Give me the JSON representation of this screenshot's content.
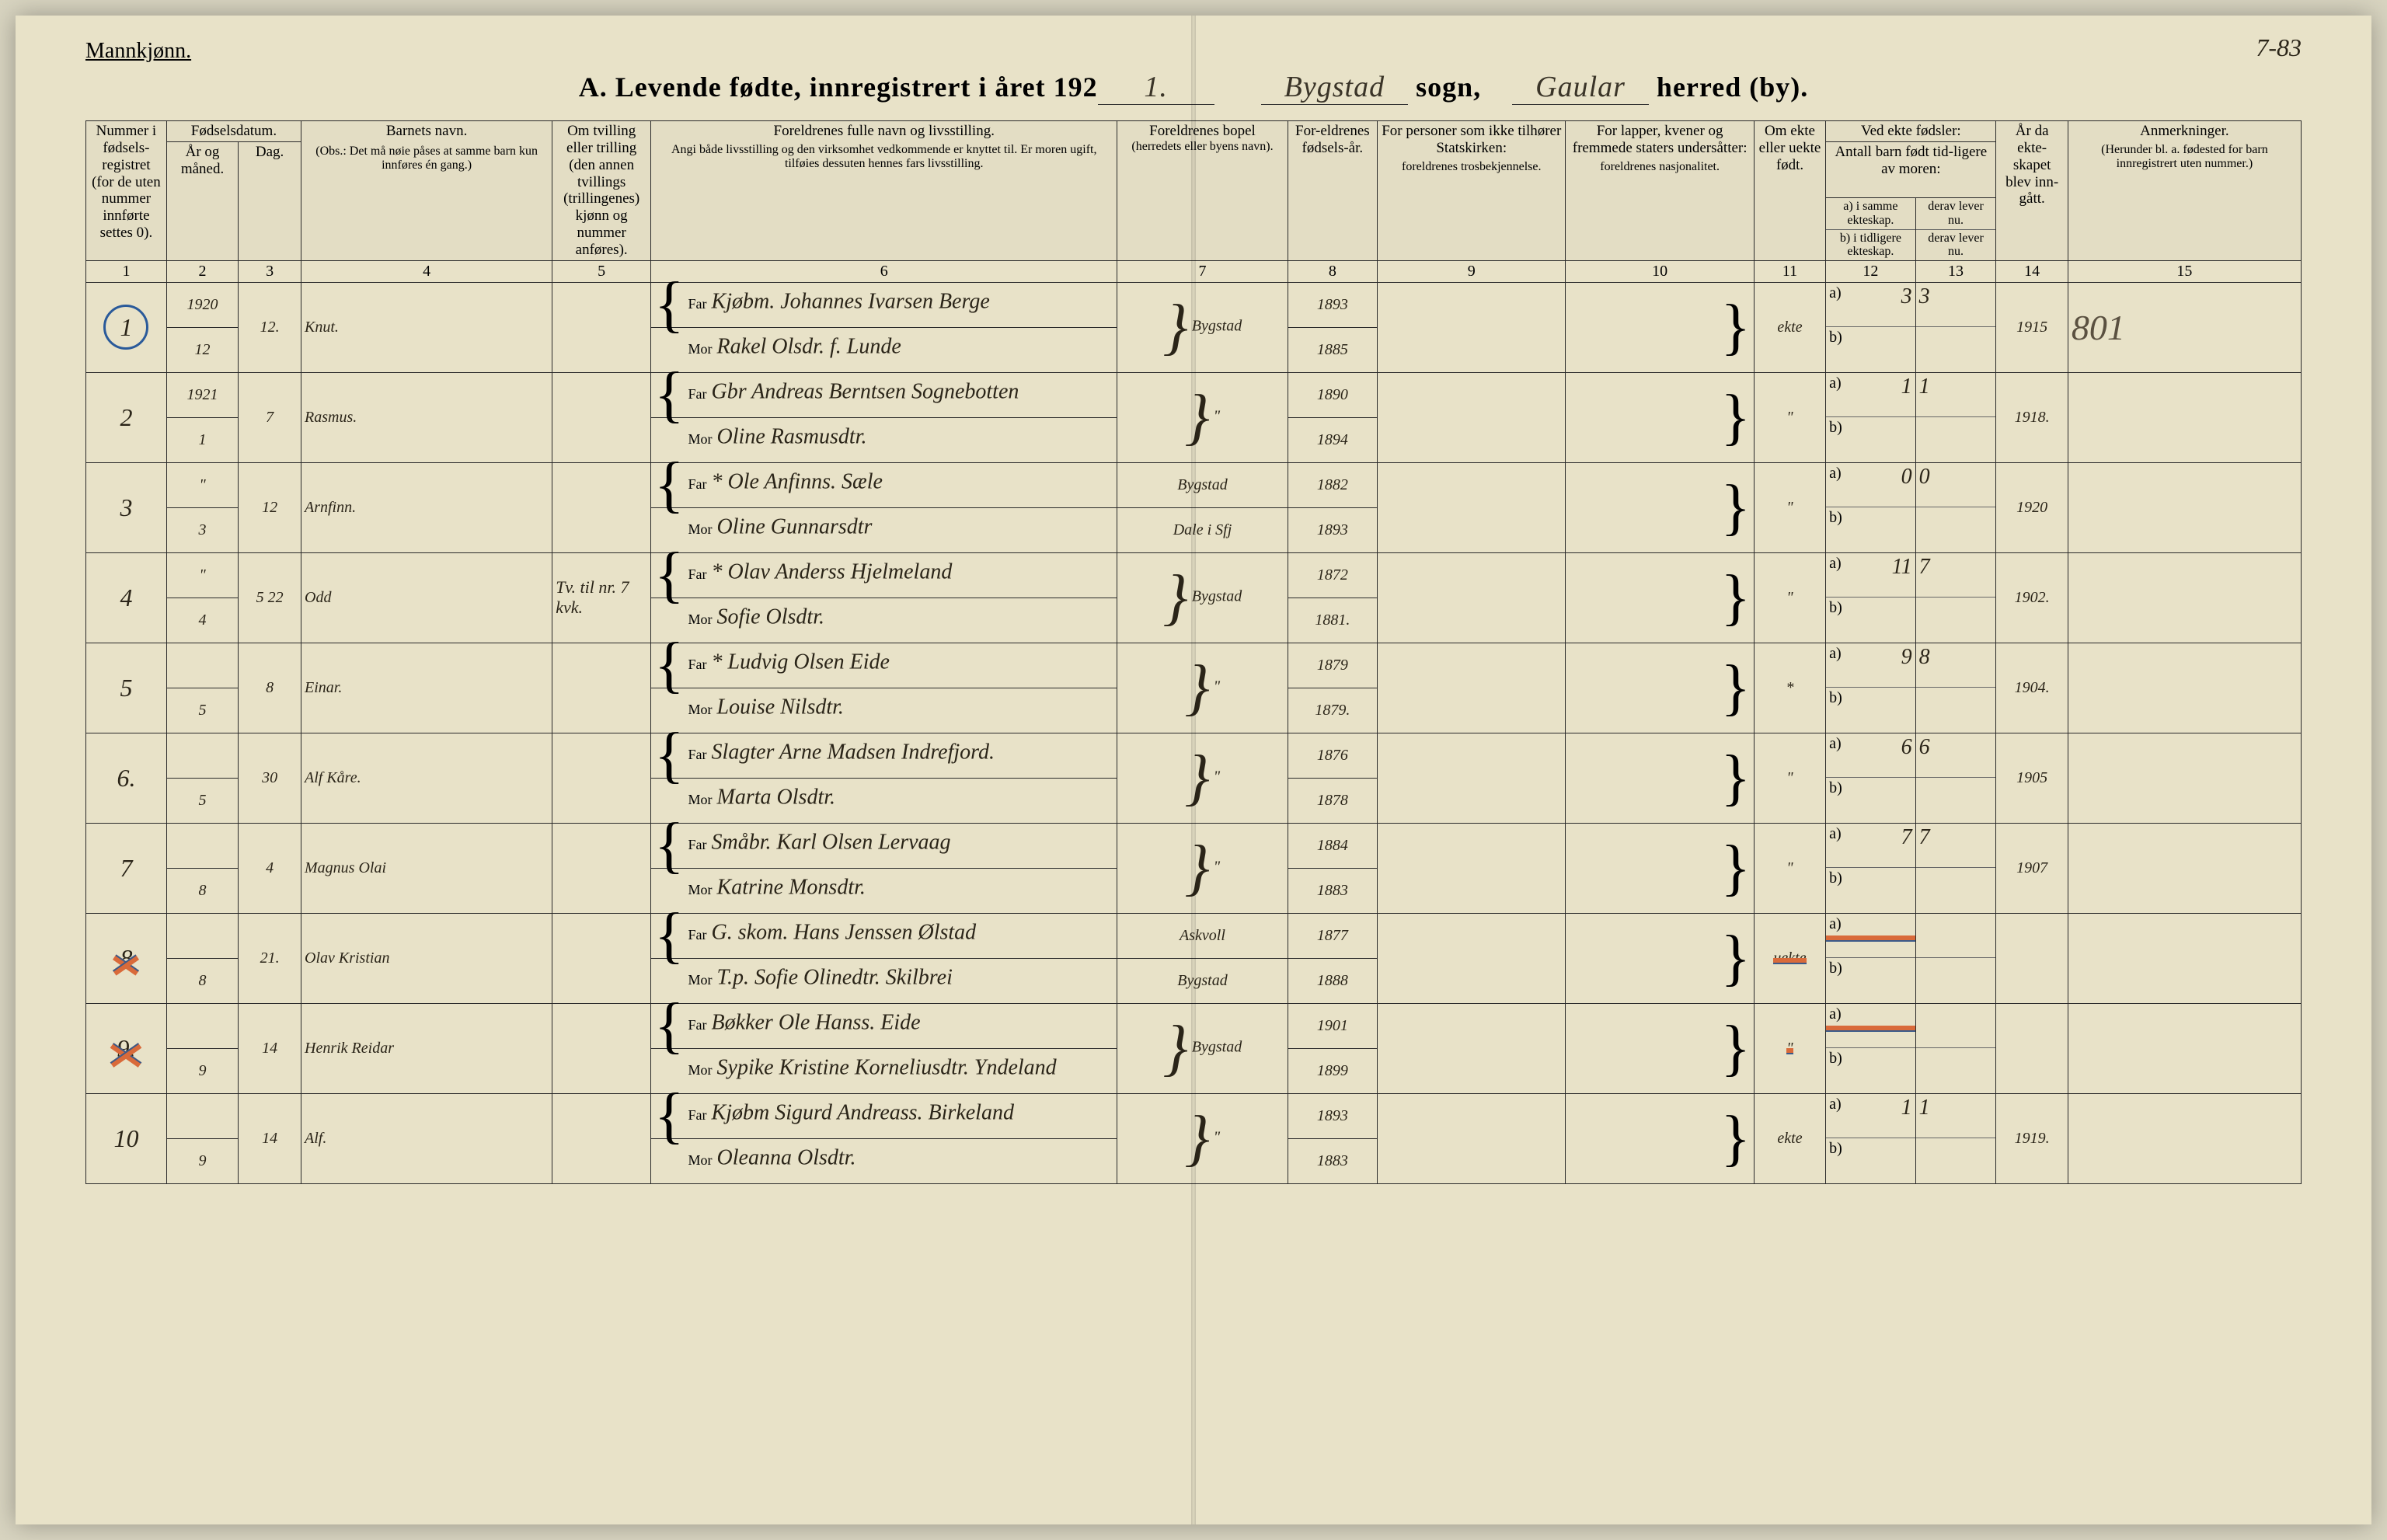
{
  "header": {
    "gender": "Mannkjønn.",
    "title_prefix": "A.  Levende  fødte,  innregistrert  i  året  192",
    "year_suffix": "1.",
    "sogn_value": "Bygstad",
    "sogn_label": "sogn,",
    "herred_value": "Gaular",
    "herred_label": "herred (by).",
    "annotation_topright": "7-83"
  },
  "columns": {
    "c1": "Nummer i fødsels-registret (for de uten nummer innførte settes 0).",
    "c2_group": "Fødselsdatum.",
    "c2": "År og måned.",
    "c3": "Dag.",
    "c4_title": "Barnets navn.",
    "c4_note": "(Obs.: Det må nøie påses at samme barn kun innføres én gang.)",
    "c5": "Om tvilling eller trilling (den annen tvillings (trillingenes) kjønn og nummer anføres).",
    "c6_title": "Foreldrenes fulle navn og livsstilling.",
    "c6_note": "Angi både livsstilling og den virksomhet vedkommende er knyttet til.  Er moren ugift, tilføies dessuten hennes fars livsstilling.",
    "c7_title": "Foreldrenes bopel",
    "c7_note": "(herredets eller byens navn).",
    "c8": "For-eldrenes fødsels-år.",
    "c9_title": "For personer som ikke tilhører Statskirken:",
    "c9_note": "foreldrenes trosbekjennelse.",
    "c10_title": "For lapper, kvener og fremmede staters undersåtter:",
    "c10_note": "foreldrenes nasjonalitet.",
    "c11": "Om ekte eller uekte født.",
    "c12_13_title": "Ved ekte fødsler:",
    "c12_13_sub": "Antall barn født tid-ligere av moren:",
    "c12a": "a) i samme ekteskap.",
    "c12b": "b) i tidligere ekteskap.",
    "c13a": "derav lever nu.",
    "c13b": "derav lever nu.",
    "c14": "År da ekte-skapet blev inn-gått.",
    "c15_title": "Anmerkninger.",
    "c15_note": "(Herunder bl. a. fødested for barn innregistrert uten nummer.)"
  },
  "colnums": [
    "1",
    "2",
    "3",
    "4",
    "5",
    "6",
    "7",
    "8",
    "9",
    "10",
    "11",
    "12",
    "13",
    "14",
    "15"
  ],
  "rows": [
    {
      "num": "1",
      "circled": true,
      "year_month": [
        "1920",
        "12"
      ],
      "day": "12.",
      "child": "Knut.",
      "twin": "",
      "far": "Kjøbm. Johannes Ivarsen Berge",
      "mor": "Rakel Olsdr. f. Lunde",
      "bopel": "Bygstad",
      "far_year": "1893",
      "mor_year": "1885",
      "ekte": "ekte",
      "a_same": "3",
      "a_lever": "3",
      "marriage": "1915",
      "remark": "801"
    },
    {
      "num": "2",
      "year_month": [
        "1921",
        "1"
      ],
      "day": "7",
      "child": "Rasmus.",
      "twin": "",
      "far": "Gbr Andreas Berntsen Sognebotten",
      "mor": "Oline Rasmusdtr.",
      "bopel": "\"",
      "far_year": "1890",
      "mor_year": "1894",
      "ekte": "\"",
      "a_same": "1",
      "a_lever": "1",
      "marriage": "1918."
    },
    {
      "num": "3",
      "year_month": [
        "\"",
        "3"
      ],
      "day": "12",
      "child": "Arnfinn.",
      "twin": "",
      "far": "* Ole Anfinns. Sæle",
      "mor": "Oline Gunnarsdtr",
      "bopel_far": "Bygstad",
      "bopel_mor": "Dale i Sfj",
      "far_year": "1882",
      "mor_year": "1893",
      "ekte": "\"",
      "a_same": "0",
      "a_lever": "0",
      "marriage": "1920"
    },
    {
      "num": "4",
      "year_month": [
        "\"",
        "4"
      ],
      "day": "5 22",
      "child": "Odd",
      "twin": "Tv. til nr. 7 kvk.",
      "far": "* Olav Anderss Hjelmeland",
      "mor": "Sofie Olsdtr.",
      "bopel": "Bygstad",
      "far_year": "1872",
      "mor_year": "1881.",
      "ekte": "\"",
      "a_same": "11",
      "a_lever": "7",
      "marriage": "1902."
    },
    {
      "num": "5",
      "year_month": [
        "",
        "5"
      ],
      "day": "8",
      "child": "Einar.",
      "twin": "",
      "far": "* Ludvig Olsen Eide",
      "mor": "Louise Nilsdtr.",
      "bopel": "\"",
      "far_year": "1879",
      "mor_year": "1879.",
      "ekte": "*",
      "a_same": "9",
      "a_lever": "8",
      "marriage": "1904."
    },
    {
      "num": "6.",
      "year_month": [
        "",
        "5"
      ],
      "day": "30",
      "child": "Alf Kåre.",
      "twin": "",
      "far": "Slagter Arne Madsen Indrefjord.",
      "mor": "Marta Olsdtr.",
      "bopel": "\"",
      "far_year": "1876",
      "mor_year": "1878",
      "ekte": "\"",
      "a_same": "6",
      "a_lever": "6",
      "marriage": "1905"
    },
    {
      "num": "7",
      "year_month": [
        "",
        "8"
      ],
      "day": "4",
      "child": "Magnus Olai",
      "twin": "",
      "far": "Småbr. Karl Olsen Lervaag",
      "mor": "Katrine Monsdtr.",
      "bopel": "\"",
      "far_year": "1884",
      "mor_year": "1883",
      "ekte": "\"",
      "a_same": "7",
      "a_lever": "7",
      "marriage": "1907"
    },
    {
      "num": "8",
      "crossed": true,
      "year_month": [
        "",
        "8"
      ],
      "day": "21.",
      "child": "Olav Kristian",
      "twin": "",
      "far": "G. skom. Hans Jenssen Ølstad",
      "mor": "T.p. Sofie Olinedtr. Skilbrei",
      "bopel_far": "Askvoll",
      "bopel_mor": "Bygstad",
      "far_year": "1877",
      "mor_year": "1888",
      "ekte": "uekte",
      "ekte_strike": true,
      "a_same": "",
      "a_lever": "",
      "marriage": ""
    },
    {
      "num": "9.",
      "crossed": true,
      "year_month": [
        "",
        "9"
      ],
      "day": "14",
      "child": "Henrik Reidar",
      "twin": "",
      "far": "Bøkker Ole Hanss. Eide",
      "mor": "Sypike Kristine Korneliusdtr. Yndeland",
      "bopel": "Bygstad",
      "far_year": "1901",
      "mor_year": "1899",
      "ekte": "\"",
      "ekte_strike": true,
      "a_same": "",
      "a_lever": "",
      "marriage": ""
    },
    {
      "num": "10",
      "year_month": [
        "",
        "9"
      ],
      "day": "14",
      "child": "Alf.",
      "twin": "",
      "far": "Kjøbm Sigurd Andreass. Birkeland",
      "mor": "Oleanna Olsdtr.",
      "bopel": "\"",
      "far_year": "1893",
      "mor_year": "1883",
      "ekte": "ekte",
      "a_same": "1",
      "a_lever": "1",
      "marriage": "1919."
    }
  ]
}
